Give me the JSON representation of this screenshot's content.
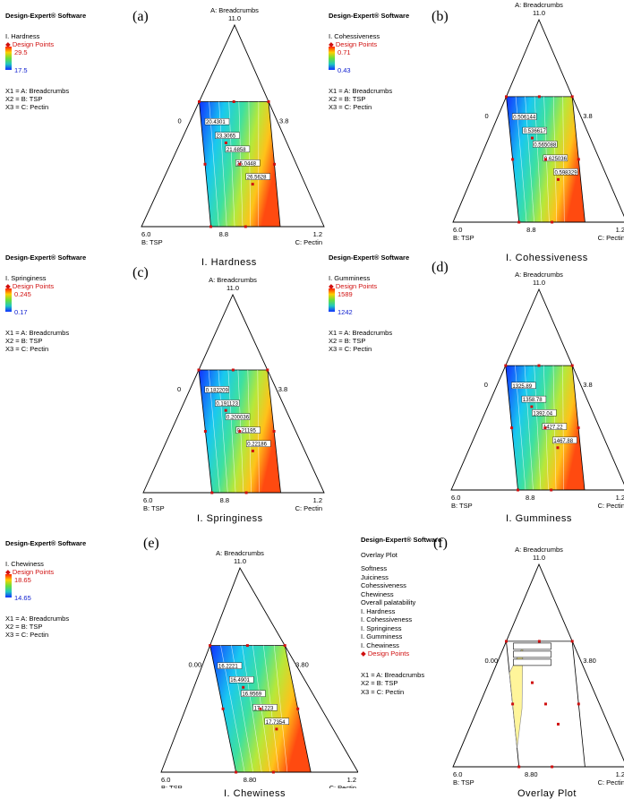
{
  "colors": {
    "low": "#1030ff",
    "high": "#ff2000",
    "design_point": "#d01010",
    "overlay_region": "#fff59a"
  },
  "chart_data": [
    {
      "type": "heatmap",
      "panel_label": "(a)",
      "title": "I. Hardness",
      "software": "Design-Expert® Software",
      "response": "I. Hardness",
      "design_points_label": "Design Points",
      "range_high": "29.5",
      "range_low": "17.5",
      "factors": [
        "X1 = A: Breadcrumbs",
        "X2 = B: TSP",
        "X3 = C: Pectin"
      ],
      "vertex_top": "A: Breadcrumbs",
      "vertex_top_value": "11.0",
      "vertex_left_value": "6.0",
      "vertex_left": "B: TSP",
      "vertex_right_value": "1.2",
      "vertex_right": "C: Pectin",
      "axis_mid_bottom": "8.8",
      "axis_mid_right": "3.8",
      "axis_mid_left": "0",
      "contour_labels": [
        "20.4301",
        "23.3065",
        "21.6858",
        "25.0448",
        "26.5628"
      ]
    },
    {
      "type": "heatmap",
      "panel_label": "(b)",
      "title": "I. Cohessiveness",
      "software": "Design-Expert® Software",
      "response": "I. Cohessiveness",
      "design_points_label": "Design Points",
      "range_high": "0.71",
      "range_low": "0.43",
      "factors": [
        "X1 = A: Breadcrumbs",
        "X2 = B: TSP",
        "X3 = C: Pectin"
      ],
      "vertex_top": "A: Breadcrumbs",
      "vertex_top_value": "11.0",
      "vertex_left_value": "6.0",
      "vertex_left": "B: TSP",
      "vertex_right_value": "1.2",
      "vertex_right": "C: Pectin",
      "axis_mid_bottom": "8.8",
      "axis_mid_right": "3.8",
      "axis_mid_left": "0",
      "contour_labels": [
        "0.506144",
        "0.536617",
        "0.565088",
        "0.625036",
        "0.598329"
      ]
    },
    {
      "type": "heatmap",
      "panel_label": "(c)",
      "title": "I. Springiness",
      "software": "Design-Expert® Software",
      "response": "I. Springiness",
      "design_points_label": "Design Points",
      "range_high": "0.245",
      "range_low": "0.17",
      "factors": [
        "X1 = A: Breadcrumbs",
        "X2 = B: TSP",
        "X3 = C: Pectin"
      ],
      "vertex_top": "A: Breadcrumbs",
      "vertex_top_value": "11.0",
      "vertex_left_value": "6.0",
      "vertex_left": "B: TSP",
      "vertex_right_value": "1.2",
      "vertex_right": "C: Pectin",
      "axis_mid_bottom": "8.8",
      "axis_mid_right": "3.8",
      "axis_mid_left": "0",
      "contour_labels": [
        "0.182209",
        "0.191123",
        "0.200036",
        "0.21195",
        "0.22186"
      ]
    },
    {
      "type": "heatmap",
      "panel_label": "(d)",
      "title": "I. Gumminess",
      "software": "Design-Expert® Software",
      "response": "I. Gumminess",
      "design_points_label": "Design Points",
      "range_high": "1589",
      "range_low": "1242",
      "factors": [
        "X1 = A: Breadcrumbs",
        "X2 = B: TSP",
        "X3 = C: Pectin"
      ],
      "vertex_top": "A: Breadcrumbs",
      "vertex_top_value": "11.0",
      "vertex_left_value": "6.0",
      "vertex_left": "B: TSP",
      "vertex_right_value": "1.2",
      "vertex_right": "C: Pectin",
      "axis_mid_bottom": "8.8",
      "axis_mid_right": "3.8",
      "axis_mid_left": "0",
      "contour_labels": [
        "1325.89",
        "1358.78",
        "1392.04",
        "1427.22",
        "1467.88"
      ]
    },
    {
      "type": "heatmap",
      "panel_label": "(e)",
      "title": "I. Chewiness",
      "software": "Design-Expert® Software",
      "response": "I. Chewiness",
      "design_points_label": "Design Points",
      "range_high": "18.65",
      "range_low": "14.65",
      "factors": [
        "X1 = A: Breadcrumbs",
        "X2 = B: TSP",
        "X3 = C: Pectin"
      ],
      "vertex_top": "A: Breadcrumbs",
      "vertex_top_value": "11.0",
      "vertex_left_value": "6.0",
      "vertex_left": "B: TSP",
      "vertex_right_value": "1.2",
      "vertex_right": "C: Pectin",
      "axis_mid_bottom": "8.80",
      "axis_mid_right": "3.80",
      "axis_mid_left": "0.00",
      "contour_labels": [
        "16.2221",
        "16.4901",
        "16.9569",
        "17.1223",
        "17.7354"
      ]
    },
    {
      "type": "overlay",
      "panel_label": "(f)",
      "title": "Overlay Plot",
      "software": "Design-Expert® Software",
      "plot_type": "Overlay Plot",
      "responses": [
        "Softness",
        "Juiciness",
        "Cohessiveness",
        "Chewiness",
        "Overall palatability",
        "I. Hardness",
        "I. Cohessiveness",
        "I. Springiness",
        "I. Gumminess",
        "I. Chewiness"
      ],
      "design_points_label": "Design Points",
      "factors": [
        "X1 = A: Breadcrumbs",
        "X2 = B: TSP",
        "X3 = C: Pectin"
      ],
      "vertex_top": "A: Breadcrumbs",
      "vertex_top_value": "11.0",
      "vertex_left_value": "6.0",
      "vertex_left": "B: TSP",
      "vertex_right_value": "1.2",
      "vertex_right": "C: Pectin",
      "axis_mid_bottom": "8.80",
      "axis_mid_right": "3.80",
      "axis_mid_left": "0.00"
    }
  ]
}
